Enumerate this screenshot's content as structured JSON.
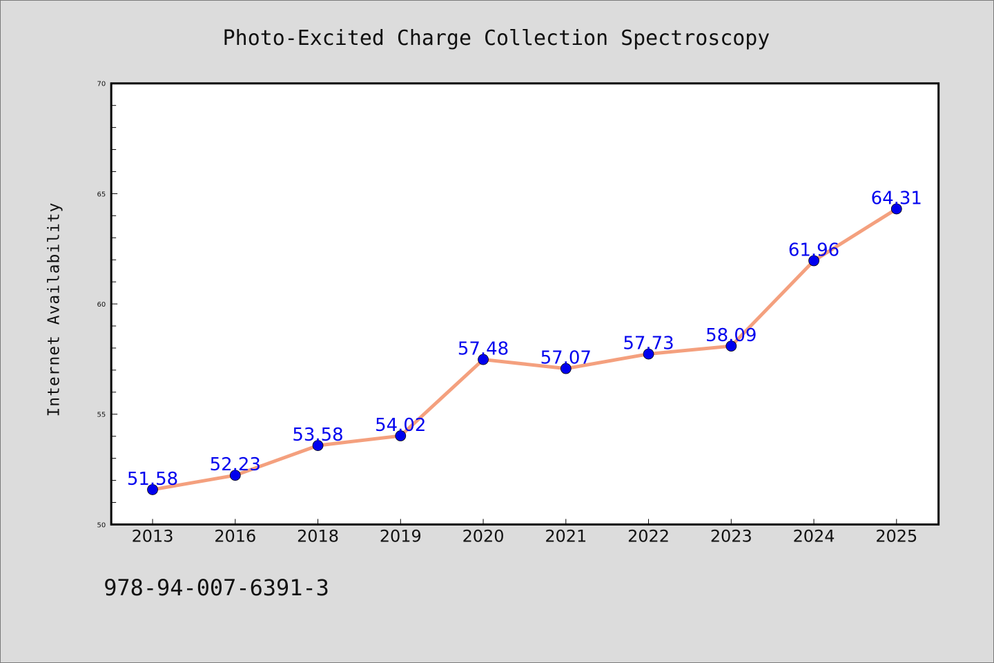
{
  "chart_data": {
    "type": "line",
    "title": "Photo-Excited Charge Collection Spectroscopy",
    "xlabel": "",
    "ylabel": "Internet Availability",
    "categories": [
      "2013",
      "2016",
      "2018",
      "2019",
      "2020",
      "2021",
      "2022",
      "2023",
      "2024",
      "2025"
    ],
    "series": [
      {
        "values": [
          51.58,
          52.23,
          53.58,
          54.02,
          57.48,
          57.07,
          57.73,
          58.09,
          61.96,
          64.31
        ],
        "data_labels": [
          "51.58",
          "52.23",
          "53.58",
          "54.02",
          "57.48",
          "57.07",
          "57.73",
          "58.09",
          "61.96",
          "64.31"
        ],
        "line_color": "#f4a07e",
        "marker_color": "#0000ee",
        "label_color": "#0000ee"
      }
    ],
    "ylim": [
      50,
      70
    ],
    "yticks": [
      50,
      55,
      60,
      65,
      70
    ],
    "grid": false,
    "legend": "none"
  },
  "footer": {
    "text": "978-94-007-6391-3"
  }
}
